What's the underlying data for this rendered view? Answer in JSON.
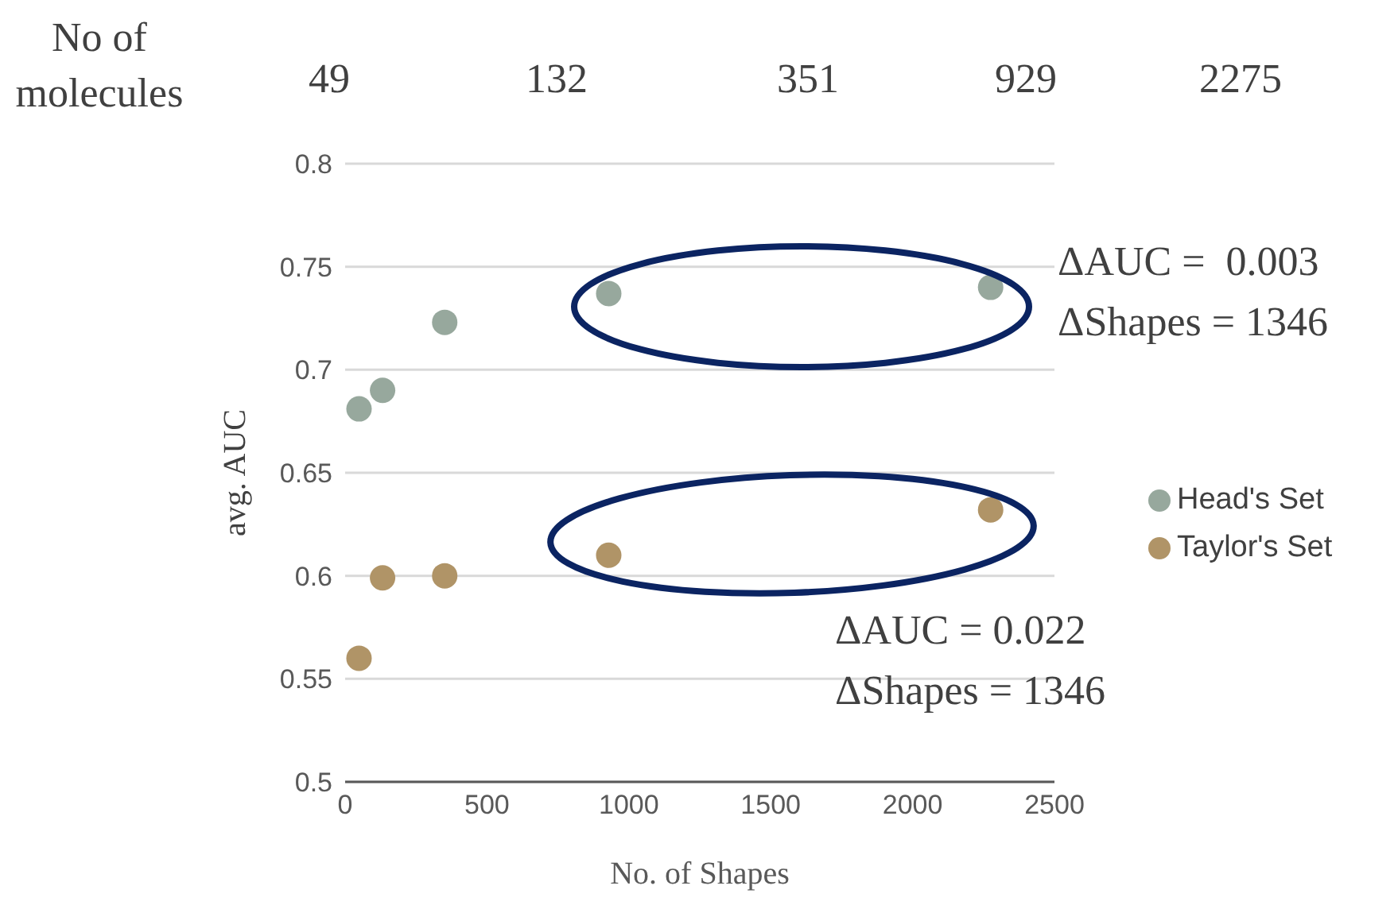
{
  "chart_data": {
    "type": "scatter",
    "xlabel": "No. of Shapes",
    "ylabel": "avg. AUC",
    "x2label": "No of molecules",
    "x": [
      49,
      132,
      351,
      929,
      2275
    ],
    "series": [
      {
        "name": "Head's Set",
        "color": "#97a89d",
        "values": [
          0.681,
          0.69,
          0.723,
          0.737,
          0.74
        ]
      },
      {
        "name": "Taylor's Set",
        "color": "#b09467",
        "values": [
          0.56,
          0.599,
          0.6,
          0.61,
          0.632
        ]
      }
    ],
    "xlim": [
      0,
      2500
    ],
    "xticks": [
      0,
      500,
      1000,
      1500,
      2000,
      2500
    ],
    "ylim": [
      0.5,
      0.8
    ],
    "yticks": [
      0.5,
      0.55,
      0.6,
      0.65,
      0.7,
      0.75,
      0.8
    ],
    "grid": "y",
    "legend": "right",
    "marker": "circle",
    "annotations": [
      "ΔAUC =  0.003",
      "ΔShapes = 1346",
      "ΔAUC = 0.022",
      "ΔShapes = 1346",
      "49",
      "132",
      "351",
      "929",
      "2275"
    ]
  }
}
